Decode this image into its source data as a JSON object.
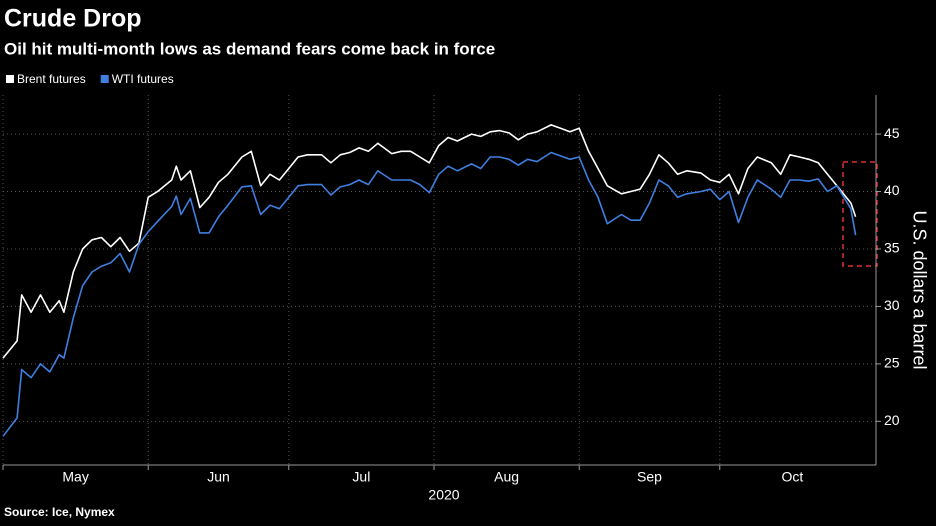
{
  "chart_data": {
    "type": "line",
    "title": "Crude Drop",
    "subtitle": "Oil hit multi-month lows as demand fears come back in force",
    "source": "Source: Ice, Nymex",
    "ylabel": "U.S. dollars a barrel",
    "xlabel": "2020",
    "x": [
      0,
      3,
      4,
      6,
      8,
      10,
      12,
      13,
      15,
      17,
      19,
      21,
      23,
      25,
      27,
      29,
      31,
      33,
      36,
      37,
      38,
      40,
      42,
      44,
      46,
      48,
      51,
      53,
      55,
      57,
      59,
      61,
      63,
      65,
      68,
      70,
      72,
      74,
      76,
      78,
      80,
      83,
      85,
      87,
      89,
      91,
      93,
      95,
      97,
      100,
      102,
      104,
      106,
      108,
      110,
      112,
      114,
      117,
      119,
      121,
      123,
      125,
      127,
      129,
      132,
      134,
      136,
      138,
      140,
      142,
      144,
      146,
      149,
      151,
      153,
      155,
      157,
      159,
      161,
      164,
      166,
      168,
      170,
      172,
      174,
      176,
      178,
      181,
      182
    ],
    "series": [
      {
        "name": "Brent futures",
        "color": "#ffffff",
        "values": [
          25.5,
          27,
          31,
          29.5,
          31,
          29.5,
          30.5,
          29.5,
          33,
          35,
          35.8,
          36,
          35.2,
          36,
          34.8,
          35.5,
          39.5,
          40,
          41,
          42.2,
          41,
          41.8,
          38.6,
          39.5,
          40.8,
          41.5,
          43,
          43.5,
          40.5,
          41.5,
          41,
          42,
          43,
          43.2,
          43.2,
          42.5,
          43.2,
          43.4,
          43.8,
          43.5,
          44.2,
          43.3,
          43.5,
          43.5,
          43,
          42.5,
          44,
          44.7,
          44.4,
          45,
          44.8,
          45.2,
          45.3,
          45.1,
          44.5,
          45,
          45.2,
          45.8,
          45.5,
          45.2,
          45.5,
          43.5,
          42,
          40.5,
          39.8,
          40,
          40.2,
          41.5,
          43.2,
          42.5,
          41.5,
          41.8,
          41.6,
          41,
          40.8,
          41.5,
          39.8,
          42,
          43,
          42.5,
          41.5,
          43.2,
          43,
          42.8,
          42.5,
          41.5,
          40.5,
          39,
          37.8
        ]
      },
      {
        "name": "WTI futures",
        "color": "#3f7fe0",
        "values": [
          18.7,
          20.3,
          24.5,
          23.8,
          25,
          24.3,
          25.8,
          25.5,
          29,
          31.8,
          33,
          33.5,
          33.8,
          34.6,
          33,
          35.4,
          36.5,
          37.4,
          38.7,
          39.6,
          38,
          39.4,
          36.4,
          36.4,
          37.8,
          38.8,
          40.4,
          40.5,
          38,
          38.8,
          38.5,
          39.5,
          40.5,
          40.6,
          40.6,
          39.7,
          40.4,
          40.6,
          41,
          40.6,
          41.8,
          41,
          41,
          41,
          40.6,
          39.9,
          41.5,
          42.2,
          41.8,
          42.4,
          42,
          43,
          43,
          42.8,
          42.3,
          42.8,
          42.6,
          43.4,
          43.1,
          42.8,
          43,
          41,
          39.5,
          37.2,
          38,
          37.5,
          37.5,
          39,
          41,
          40.5,
          39.5,
          39.8,
          40,
          40.2,
          39.3,
          40,
          37.3,
          39.5,
          41,
          40.2,
          39.5,
          41,
          41,
          40.9,
          41.1,
          40,
          40.5,
          38.5,
          36.2
        ]
      }
    ],
    "xlim": [
      0,
      184
    ],
    "xticks": [
      {
        "value": 0,
        "label": "May"
      },
      {
        "value": 31,
        "label": "Jun"
      },
      {
        "value": 61,
        "label": "Jul"
      },
      {
        "value": 92,
        "label": "Aug"
      },
      {
        "value": 123,
        "label": "Sep"
      },
      {
        "value": 153,
        "label": "Oct"
      }
    ],
    "ylim": [
      16.2,
      48.4
    ],
    "yticks": [
      20,
      25,
      30,
      35,
      40,
      45
    ],
    "grid": true
  }
}
